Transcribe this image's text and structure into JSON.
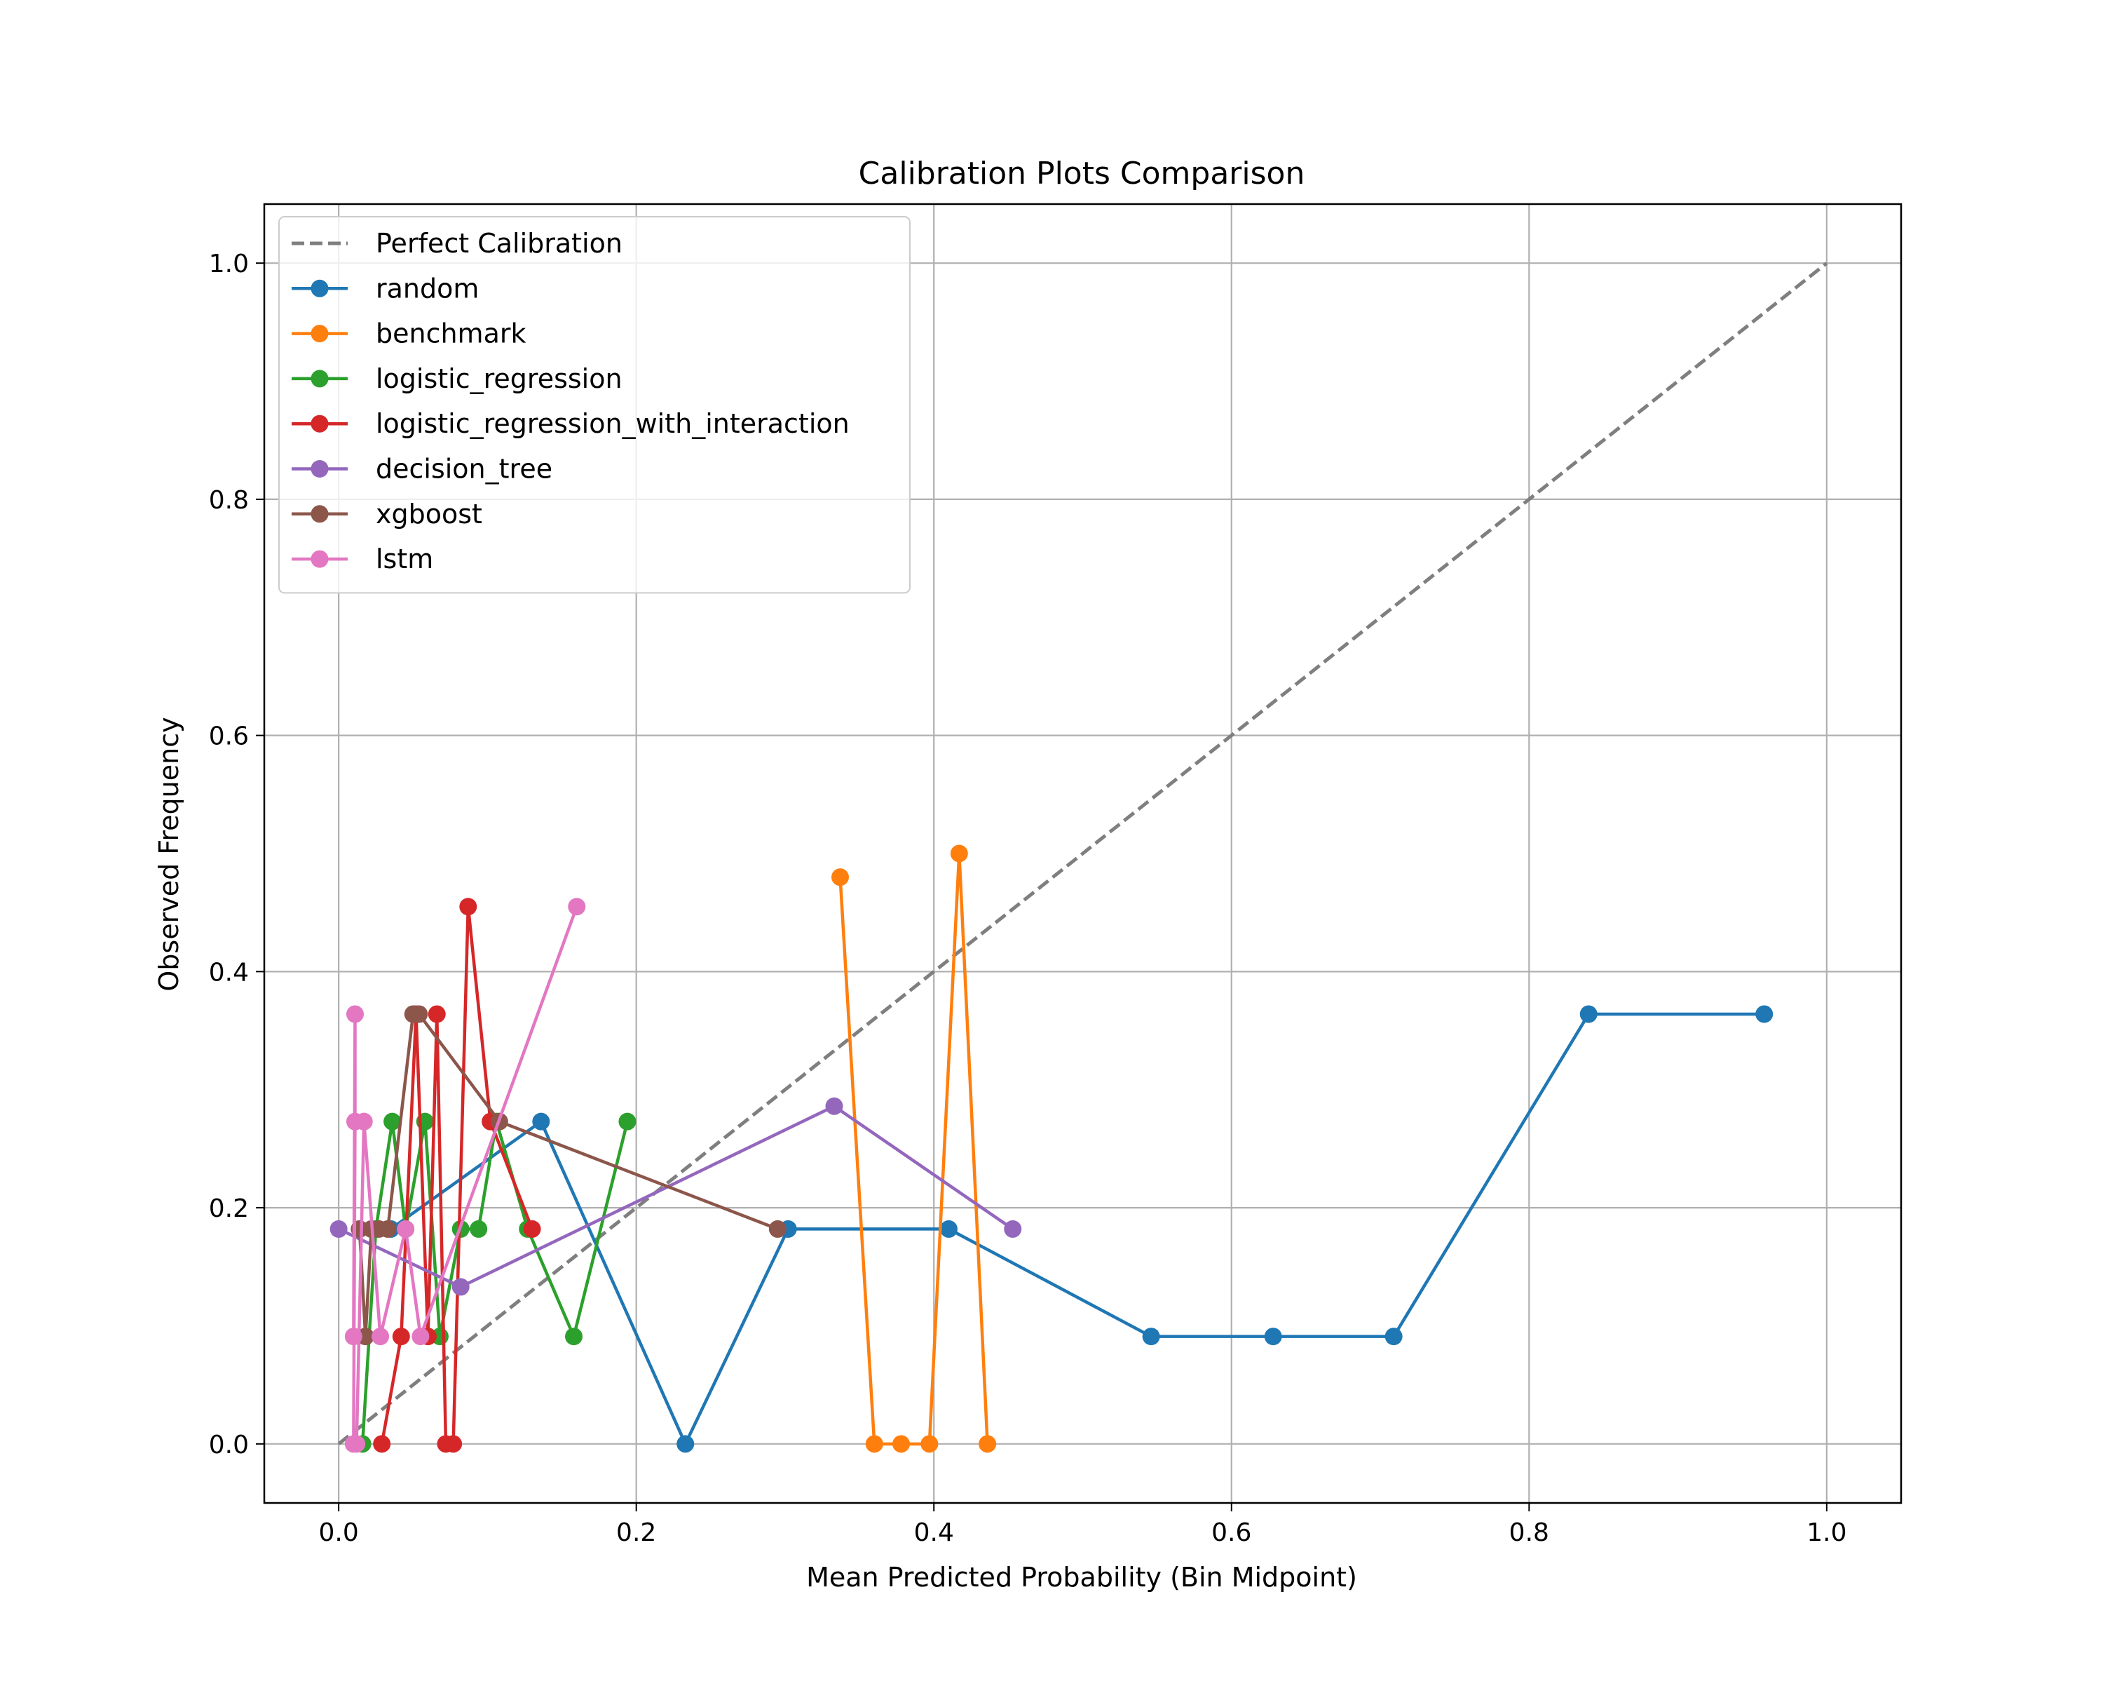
{
  "chart_data": {
    "type": "line",
    "title": "Calibration Plots Comparison",
    "xlabel": "Mean Predicted Probability (Bin Midpoint)",
    "ylabel": "Observed Frequency",
    "xlim": [
      -0.05,
      1.05
    ],
    "ylim": [
      -0.05,
      1.05
    ],
    "xticks": [
      "0.0",
      "0.2",
      "0.4",
      "0.6",
      "0.8",
      "1.0"
    ],
    "yticks": [
      "0.0",
      "0.2",
      "0.4",
      "0.6",
      "0.8",
      "1.0"
    ],
    "grid": true,
    "legend_position": "upper-left",
    "series": [
      {
        "name": "Perfect Calibration",
        "color": "#7f7f7f",
        "dashed": true,
        "markers": false,
        "x": [
          0.0,
          1.0
        ],
        "y": [
          0.0,
          1.0
        ]
      },
      {
        "name": "random",
        "color": "#1f77b4",
        "x": [
          0.035,
          0.136,
          0.233,
          0.302,
          0.41,
          0.546,
          0.628,
          0.709,
          0.84,
          0.958
        ],
        "y": [
          0.182,
          0.273,
          0.0,
          0.182,
          0.182,
          0.091,
          0.091,
          0.091,
          0.364,
          0.364
        ]
      },
      {
        "name": "benchmark",
        "color": "#ff7f0e",
        "x": [
          0.337,
          0.36,
          0.378,
          0.397,
          0.417,
          0.436
        ],
        "y": [
          0.48,
          0.0,
          0.0,
          0.0,
          0.5,
          0.0
        ]
      },
      {
        "name": "logistic_regression",
        "color": "#2ca02c",
        "x": [
          0.016,
          0.025,
          0.036,
          0.045,
          0.058,
          0.068,
          0.082,
          0.094,
          0.106,
          0.127,
          0.158,
          0.194
        ],
        "y": [
          0.0,
          0.182,
          0.273,
          0.182,
          0.273,
          0.091,
          0.182,
          0.182,
          0.273,
          0.182,
          0.091,
          0.273
        ]
      },
      {
        "name": "logistic_regression_with_interaction",
        "color": "#d62728",
        "x": [
          0.029,
          0.042,
          0.052,
          0.06,
          0.066,
          0.072,
          0.077,
          0.087,
          0.102,
          0.13
        ],
        "y": [
          0.0,
          0.091,
          0.364,
          0.091,
          0.364,
          0.0,
          0.0,
          0.455,
          0.273,
          0.182
        ]
      },
      {
        "name": "decision_tree",
        "color": "#9467bd",
        "x": [
          0.0,
          0.082,
          0.333,
          0.453
        ],
        "y": [
          0.182,
          0.133,
          0.286,
          0.182
        ]
      },
      {
        "name": "xgboost",
        "color": "#8c564b",
        "x": [
          0.014,
          0.018,
          0.022,
          0.027,
          0.033,
          0.05,
          0.054,
          0.108,
          0.295
        ],
        "y": [
          0.182,
          0.091,
          0.182,
          0.182,
          0.182,
          0.364,
          0.364,
          0.273,
          0.182
        ]
      },
      {
        "name": "lstm",
        "color": "#e377c2",
        "x": [
          0.01,
          0.011,
          0.011,
          0.01,
          0.012,
          0.017,
          0.028,
          0.045,
          0.055,
          0.16
        ],
        "y": [
          0.091,
          0.364,
          0.273,
          0.0,
          0.0,
          0.273,
          0.091,
          0.182,
          0.091,
          0.455
        ]
      }
    ]
  }
}
